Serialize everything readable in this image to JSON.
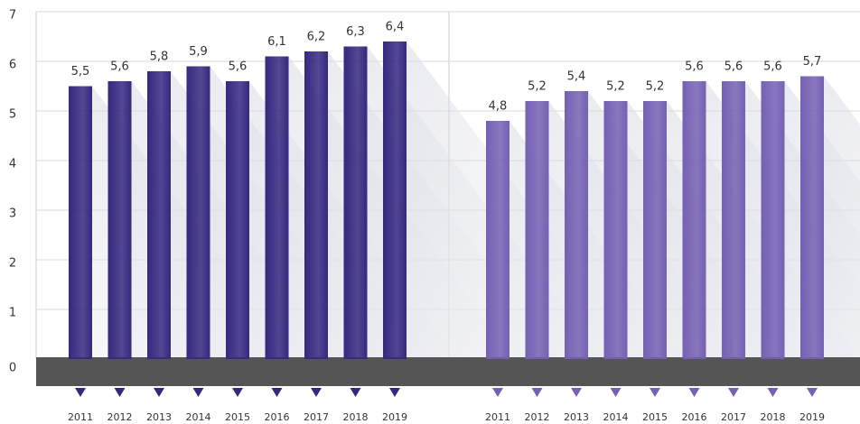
{
  "chart_data": {
    "type": "bar",
    "categories": [
      "2011",
      "2012",
      "2013",
      "2014",
      "2015",
      "2016",
      "2017",
      "2018",
      "2019"
    ],
    "series": [
      {
        "color": "#35287f",
        "values": [
          5.5,
          5.6,
          5.8,
          5.9,
          5.6,
          6.1,
          6.2,
          6.3,
          6.4
        ],
        "value_labels": [
          "5,5",
          "5,6",
          "5,8",
          "5,9",
          "5,6",
          "6,1",
          "6,2",
          "6,3",
          "6,4"
        ]
      },
      {
        "color": "#7560b3",
        "values": [
          4.8,
          5.2,
          5.4,
          5.2,
          5.2,
          5.6,
          5.6,
          5.6,
          5.7
        ],
        "value_labels": [
          "4,8",
          "5,2",
          "5,4",
          "5,2",
          "5,2",
          "5,6",
          "5,6",
          "5,6",
          "5,7"
        ]
      }
    ],
    "ylim": [
      0,
      7
    ],
    "yticks": [
      0,
      1,
      2,
      3,
      4,
      5,
      6,
      7
    ],
    "grid": true
  }
}
